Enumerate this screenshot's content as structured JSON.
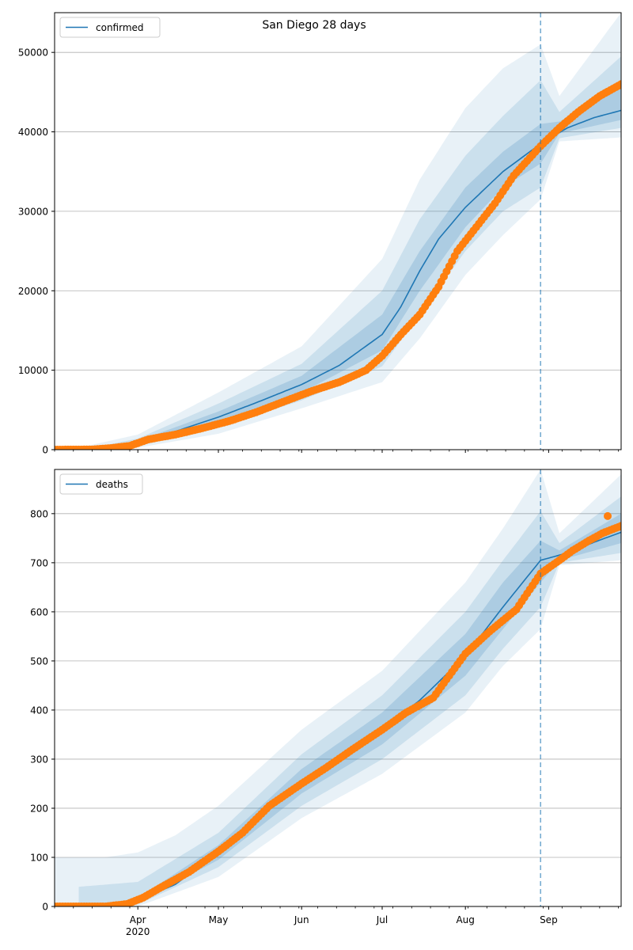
{
  "figure": {
    "title": "San Diego 28 days"
  },
  "chart_data": [
    {
      "type": "line",
      "legend": "top-left",
      "grid": "y",
      "series": [
        {
          "name": "confirmed",
          "role": "model-median",
          "color": "#1f77b4",
          "points": [
            [
              "2020-03-01",
              0
            ],
            [
              "2020-03-25",
              350
            ],
            [
              "2020-04-01",
              900
            ],
            [
              "2020-04-15",
              2300
            ],
            [
              "2020-05-01",
              4100
            ],
            [
              "2020-05-15",
              5900
            ],
            [
              "2020-06-01",
              8200
            ],
            [
              "2020-06-15",
              10600
            ],
            [
              "2020-07-01",
              14500
            ],
            [
              "2020-07-08",
              18000
            ],
            [
              "2020-07-15",
              22500
            ],
            [
              "2020-07-22",
              26500
            ],
            [
              "2020-08-01",
              30500
            ],
            [
              "2020-08-15",
              35000
            ],
            [
              "2020-08-29",
              38500
            ],
            [
              "2020-09-08",
              40500
            ],
            [
              "2020-09-18",
              41800
            ],
            [
              "2020-09-28",
              42700
            ]
          ]
        },
        {
          "name": "",
          "role": "observed",
          "color": "#ff7f0e",
          "points": [
            [
              "2020-03-01",
              0
            ],
            [
              "2020-03-15",
              20
            ],
            [
              "2020-03-22",
              200
            ],
            [
              "2020-03-29",
              480
            ],
            [
              "2020-04-05",
              1300
            ],
            [
              "2020-04-15",
              1900
            ],
            [
              "2020-04-25",
              2700
            ],
            [
              "2020-05-05",
              3600
            ],
            [
              "2020-05-15",
              4700
            ],
            [
              "2020-05-25",
              6000
            ],
            [
              "2020-06-05",
              7400
            ],
            [
              "2020-06-15",
              8500
            ],
            [
              "2020-06-25",
              10000
            ],
            [
              "2020-07-01",
              11800
            ],
            [
              "2020-07-08",
              14500
            ],
            [
              "2020-07-15",
              17000
            ],
            [
              "2020-07-22",
              20500
            ],
            [
              "2020-07-29",
              25000
            ],
            [
              "2020-08-05",
              28000
            ],
            [
              "2020-08-12",
              31000
            ],
            [
              "2020-08-19",
              34500
            ],
            [
              "2020-08-29",
              38200
            ],
            [
              "2020-09-05",
              40500
            ],
            [
              "2020-09-12",
              42500
            ],
            [
              "2020-09-20",
              44500
            ],
            [
              "2020-09-28",
              46000
            ]
          ]
        }
      ],
      "bands": [
        {
          "level": "inner",
          "opacity": 0.18,
          "upper": [
            [
              "2020-03-20",
              300
            ],
            [
              "2020-04-01",
              1100
            ],
            [
              "2020-05-01",
              4800
            ],
            [
              "2020-06-01",
              9300
            ],
            [
              "2020-07-01",
              17000
            ],
            [
              "2020-07-15",
              25000
            ],
            [
              "2020-08-01",
              33000
            ],
            [
              "2020-08-15",
              37500
            ],
            [
              "2020-08-29",
              41000
            ],
            [
              "2020-09-05",
              41300
            ],
            [
              "2020-09-28",
              45500
            ]
          ],
          "lower": [
            [
              "2020-03-20",
              100
            ],
            [
              "2020-04-01",
              700
            ],
            [
              "2020-05-01",
              3500
            ],
            [
              "2020-06-01",
              7200
            ],
            [
              "2020-07-01",
              12500
            ],
            [
              "2020-07-15",
              20000
            ],
            [
              "2020-08-01",
              28000
            ],
            [
              "2020-08-15",
              33000
            ],
            [
              "2020-08-29",
              36000
            ],
            [
              "2020-09-05",
              39800
            ],
            [
              "2020-09-28",
              41500
            ]
          ]
        },
        {
          "level": "middle",
          "opacity": 0.14,
          "upper": [
            [
              "2020-03-15",
              250
            ],
            [
              "2020-04-01",
              1400
            ],
            [
              "2020-05-01",
              5800
            ],
            [
              "2020-06-01",
              10800
            ],
            [
              "2020-07-01",
              20000
            ],
            [
              "2020-07-15",
              29000
            ],
            [
              "2020-08-01",
              37000
            ],
            [
              "2020-08-15",
              42000
            ],
            [
              "2020-08-29",
              46500
            ],
            [
              "2020-09-05",
              42500
            ],
            [
              "2020-09-28",
              49500
            ]
          ],
          "lower": [
            [
              "2020-03-15",
              0
            ],
            [
              "2020-04-01",
              450
            ],
            [
              "2020-05-01",
              2800
            ],
            [
              "2020-06-01",
              6200
            ],
            [
              "2020-07-01",
              10500
            ],
            [
              "2020-07-15",
              17000
            ],
            [
              "2020-08-01",
              25000
            ],
            [
              "2020-08-15",
              30000
            ],
            [
              "2020-08-29",
              33000
            ],
            [
              "2020-09-05",
              39200
            ],
            [
              "2020-09-28",
              40500
            ]
          ]
        },
        {
          "level": "outer",
          "opacity": 0.1,
          "upper": [
            [
              "2020-03-10",
              250
            ],
            [
              "2020-04-01",
              1900
            ],
            [
              "2020-05-01",
              7200
            ],
            [
              "2020-06-01",
              13000
            ],
            [
              "2020-07-01",
              24000
            ],
            [
              "2020-07-15",
              34000
            ],
            [
              "2020-08-01",
              43000
            ],
            [
              "2020-08-15",
              48000
            ],
            [
              "2020-08-29",
              51000
            ],
            [
              "2020-09-05",
              44500
            ],
            [
              "2020-09-28",
              55000
            ]
          ],
          "lower": [
            [
              "2020-03-10",
              0
            ],
            [
              "2020-04-01",
              250
            ],
            [
              "2020-05-01",
              2000
            ],
            [
              "2020-06-01",
              5200
            ],
            [
              "2020-07-01",
              8500
            ],
            [
              "2020-07-15",
              14000
            ],
            [
              "2020-08-01",
              22000
            ],
            [
              "2020-08-15",
              27000
            ],
            [
              "2020-08-29",
              31500
            ],
            [
              "2020-09-05",
              38800
            ],
            [
              "2020-09-28",
              39300
            ]
          ]
        }
      ],
      "vline": {
        "x": "2020-08-29"
      },
      "xlim": [
        "2020-03-01",
        "2020-09-28"
      ],
      "ylim": [
        0,
        55000
      ],
      "yticks": [
        0,
        10000,
        20000,
        30000,
        40000,
        50000
      ],
      "ytick_labels": [
        "0",
        "10000",
        "20000",
        "30000",
        "40000",
        "50000"
      ]
    },
    {
      "type": "line",
      "legend": "top-left",
      "grid": "y",
      "series": [
        {
          "name": "deaths",
          "role": "model-median",
          "color": "#1f77b4",
          "points": [
            [
              "2020-03-01",
              0
            ],
            [
              "2020-03-25",
              3
            ],
            [
              "2020-04-01",
              12
            ],
            [
              "2020-04-15",
              45
            ],
            [
              "2020-05-01",
              110
            ],
            [
              "2020-05-15",
              175
            ],
            [
              "2020-06-01",
              255
            ],
            [
              "2020-06-15",
              305
            ],
            [
              "2020-07-01",
              360
            ],
            [
              "2020-07-15",
              420
            ],
            [
              "2020-08-01",
              510
            ],
            [
              "2020-08-15",
              610
            ],
            [
              "2020-08-29",
              705
            ],
            [
              "2020-09-08",
              720
            ],
            [
              "2020-09-18",
              742
            ],
            [
              "2020-09-28",
              762
            ]
          ]
        },
        {
          "name": "",
          "role": "observed",
          "color": "#ff7f0e",
          "points": [
            [
              "2020-03-01",
              0
            ],
            [
              "2020-03-20",
              0
            ],
            [
              "2020-03-28",
              5
            ],
            [
              "2020-04-03",
              18
            ],
            [
              "2020-04-10",
              40
            ],
            [
              "2020-04-20",
              70
            ],
            [
              "2020-05-01",
              112
            ],
            [
              "2020-05-10",
              150
            ],
            [
              "2020-05-20",
              205
            ],
            [
              "2020-06-01",
              250
            ],
            [
              "2020-06-10",
              282
            ],
            [
              "2020-06-20",
              320
            ],
            [
              "2020-07-01",
              360
            ],
            [
              "2020-07-10",
              395
            ],
            [
              "2020-07-20",
              425
            ],
            [
              "2020-08-01",
              515
            ],
            [
              "2020-08-10",
              560
            ],
            [
              "2020-08-20",
              605
            ],
            [
              "2020-08-29",
              678
            ],
            [
              "2020-09-05",
              705
            ],
            [
              "2020-09-10",
              725
            ],
            [
              "2020-09-16",
              745
            ],
            [
              "2020-09-21",
              760
            ],
            [
              "2020-09-28",
              775
            ],
            [
              "2020-09-23",
              795
            ]
          ]
        }
      ],
      "bands": [
        {
          "level": "inner",
          "opacity": 0.18,
          "upper": [
            [
              "2020-03-20",
              2
            ],
            [
              "2020-04-01",
              17
            ],
            [
              "2020-05-01",
              125
            ],
            [
              "2020-06-01",
              280
            ],
            [
              "2020-07-01",
              395
            ],
            [
              "2020-08-01",
              555
            ],
            [
              "2020-08-15",
              660
            ],
            [
              "2020-08-29",
              745
            ],
            [
              "2020-09-05",
              725
            ],
            [
              "2020-09-28",
              800
            ]
          ],
          "lower": [
            [
              "2020-03-20",
              0
            ],
            [
              "2020-04-01",
              8
            ],
            [
              "2020-05-01",
              95
            ],
            [
              "2020-06-01",
              230
            ],
            [
              "2020-07-01",
              330
            ],
            [
              "2020-08-01",
              470
            ],
            [
              "2020-08-15",
              565
            ],
            [
              "2020-08-29",
              660
            ],
            [
              "2020-09-05",
              705
            ],
            [
              "2020-09-28",
              740
            ]
          ]
        },
        {
          "level": "middle",
          "opacity": 0.14,
          "upper": [
            [
              "2020-03-10",
              40
            ],
            [
              "2020-04-01",
              50
            ],
            [
              "2020-05-01",
              150
            ],
            [
              "2020-06-01",
              310
            ],
            [
              "2020-07-01",
              430
            ],
            [
              "2020-08-01",
              600
            ],
            [
              "2020-08-15",
              705
            ],
            [
              "2020-08-29",
              805
            ],
            [
              "2020-09-05",
              740
            ],
            [
              "2020-09-28",
              835
            ]
          ],
          "lower": [
            [
              "2020-03-10",
              0
            ],
            [
              "2020-04-01",
              4
            ],
            [
              "2020-05-01",
              80
            ],
            [
              "2020-06-01",
              205
            ],
            [
              "2020-07-01",
              300
            ],
            [
              "2020-08-01",
              430
            ],
            [
              "2020-08-15",
              525
            ],
            [
              "2020-08-29",
              610
            ],
            [
              "2020-09-05",
              700
            ],
            [
              "2020-09-28",
              720
            ]
          ]
        },
        {
          "level": "outer",
          "opacity": 0.1,
          "upper": [
            [
              "2020-03-01",
              100
            ],
            [
              "2020-03-20",
              100
            ],
            [
              "2020-04-01",
              110
            ],
            [
              "2020-04-15",
              145
            ],
            [
              "2020-05-01",
              205
            ],
            [
              "2020-06-01",
              360
            ],
            [
              "2020-07-01",
              480
            ],
            [
              "2020-08-01",
              660
            ],
            [
              "2020-08-15",
              770
            ],
            [
              "2020-08-29",
              890
            ],
            [
              "2020-09-05",
              760
            ],
            [
              "2020-09-28",
              880
            ]
          ],
          "lower": [
            [
              "2020-03-01",
              0
            ],
            [
              "2020-04-01",
              0
            ],
            [
              "2020-05-01",
              60
            ],
            [
              "2020-06-01",
              180
            ],
            [
              "2020-07-01",
              270
            ],
            [
              "2020-08-01",
              395
            ],
            [
              "2020-08-15",
              490
            ],
            [
              "2020-08-29",
              565
            ],
            [
              "2020-09-05",
              695
            ],
            [
              "2020-09-28",
              705
            ]
          ]
        }
      ],
      "vline": {
        "x": "2020-08-29"
      },
      "xlim": [
        "2020-03-01",
        "2020-09-28"
      ],
      "ylim": [
        0,
        890
      ],
      "yticks": [
        0,
        100,
        200,
        300,
        400,
        500,
        600,
        700,
        800
      ],
      "ytick_labels": [
        "0",
        "100",
        "200",
        "300",
        "400",
        "500",
        "600",
        "700",
        "800"
      ],
      "xticks_major": [
        "2020-04-01",
        "2020-05-01",
        "2020-06-01",
        "2020-07-01",
        "2020-08-01",
        "2020-09-01"
      ],
      "xtick_labels": [
        "Apr",
        "May",
        "Jun",
        "Jul",
        "Aug",
        "Sep"
      ],
      "xtick_sublabel": "2020"
    }
  ]
}
